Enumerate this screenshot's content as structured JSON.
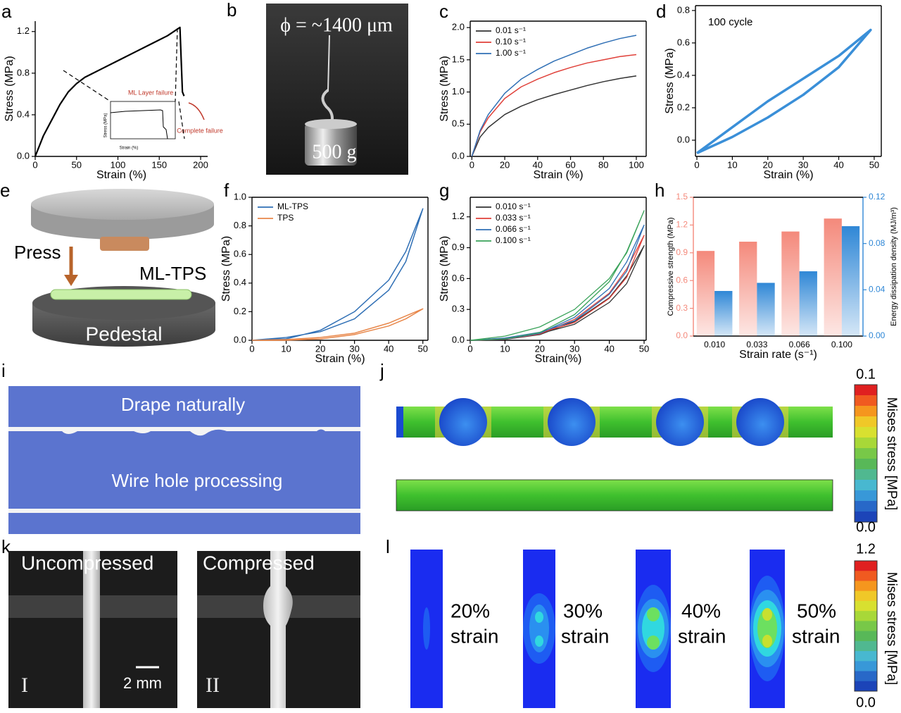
{
  "chart_data": [
    {
      "type": "line",
      "label": "a",
      "xlabel": "Strain (%)",
      "ylabel": "Stress (MPa)",
      "frame": false,
      "x": [
        0,
        10,
        20,
        30,
        40,
        50,
        60,
        80,
        100,
        120,
        140,
        160,
        175,
        178,
        180
      ],
      "series": [
        {
          "color": "#000000",
          "linewidth": 2.2,
          "values": [
            0,
            0.2,
            0.35,
            0.5,
            0.62,
            0.7,
            0.76,
            0.84,
            0.92,
            1.0,
            1.08,
            1.16,
            1.24,
            0.62,
            0.58
          ]
        }
      ],
      "xlim": [
        0,
        208.5
      ],
      "xticks": [
        0,
        50,
        100,
        150,
        200
      ],
      "ylim": [
        0,
        1.3
      ],
      "yticks": [
        {
          "value": 0,
          "label": "0.0"
        },
        0.4,
        0.8,
        1.2
      ],
      "annotations": [
        "ML Layer failure",
        "Complete failure",
        "Stress (MPa)",
        "Strain (%)"
      ]
    },
    {
      "type": "line",
      "label": "c",
      "xlabel": "Strain (%)",
      "ylabel": "Stress (MPa)",
      "frame": true,
      "legend": "upper left",
      "x": [
        0,
        5,
        10,
        20,
        30,
        40,
        50,
        60,
        70,
        80,
        90,
        100
      ],
      "series": [
        {
          "name": "0.01 s⁻¹",
          "color": "#333333",
          "linewidth": 1.5,
          "values": [
            0,
            0.3,
            0.45,
            0.65,
            0.78,
            0.88,
            0.96,
            1.03,
            1.1,
            1.16,
            1.21,
            1.25
          ]
        },
        {
          "name": "0.10 s⁻¹",
          "color": "#e0413a",
          "linewidth": 1.5,
          "values": [
            0,
            0.38,
            0.6,
            0.9,
            1.08,
            1.2,
            1.3,
            1.38,
            1.45,
            1.5,
            1.55,
            1.58
          ]
        },
        {
          "name": "1.00 s⁻¹",
          "color": "#2f6fb5",
          "linewidth": 1.5,
          "values": [
            0,
            0.4,
            0.65,
            0.98,
            1.2,
            1.35,
            1.48,
            1.58,
            1.68,
            1.76,
            1.83,
            1.88
          ]
        }
      ],
      "xlim": [
        -1,
        106
      ],
      "xticks": [
        0,
        20,
        40,
        60,
        80,
        100
      ],
      "ylim": [
        0,
        2.1
      ],
      "yticks": [
        {
          "value": 0,
          "label": "0.0"
        },
        0.5,
        {
          "value": 1,
          "label": "1.0"
        },
        1.5,
        {
          "value": 2,
          "label": "2.0"
        }
      ]
    },
    {
      "type": "line",
      "label": "d",
      "xlabel": "Strain (%)",
      "ylabel": "Stress (MPa)",
      "frame": true,
      "x": [
        0,
        10,
        20,
        30,
        40,
        49,
        40,
        30,
        20,
        10,
        0
      ],
      "series": [
        {
          "color": "#3a8fd8",
          "linewidth": 3.5,
          "values": [
            -0.08,
            0.08,
            0.24,
            0.38,
            0.52,
            0.68,
            0.45,
            0.28,
            0.14,
            0.02,
            -0.08
          ]
        }
      ],
      "xlim": [
        -0.4,
        52
      ],
      "xticks": [
        0,
        10,
        20,
        30,
        40,
        50
      ],
      "ylim": [
        -0.1,
        0.83
      ],
      "yticks": [
        {
          "value": 0,
          "label": "0.0"
        },
        0.2,
        0.4,
        0.6,
        0.8
      ],
      "annotations": [
        "100 cycle"
      ]
    },
    {
      "type": "line",
      "label": "f",
      "xlabel": "Strain (%)",
      "ylabel": "Stress (MPa)",
      "frame": true,
      "legend": "upper left",
      "x": [
        0,
        10,
        20,
        30,
        40,
        45,
        50,
        45,
        40,
        30,
        20,
        10,
        0
      ],
      "series": [
        {
          "name": "ML-TPS",
          "color": "#2f6fb5",
          "linewidth": 1.5,
          "values": [
            0,
            0.02,
            0.06,
            0.15,
            0.35,
            0.55,
            0.92,
            0.62,
            0.42,
            0.2,
            0.07,
            0.01,
            0
          ]
        },
        {
          "name": "TPS",
          "color": "#e8874a",
          "linewidth": 1.5,
          "values": [
            0,
            0.005,
            0.02,
            0.05,
            0.12,
            0.17,
            0.22,
            0.15,
            0.1,
            0.04,
            0.01,
            0,
            0
          ]
        }
      ],
      "xlim": [
        0,
        51.5
      ],
      "xticks": [
        0,
        10,
        20,
        30,
        40,
        50
      ],
      "ylim": [
        0,
        1
      ],
      "yticks": [
        {
          "value": 0,
          "label": "0.0"
        },
        0.2,
        0.4,
        0.6,
        0.8,
        {
          "value": 1,
          "label": "1.0"
        }
      ]
    },
    {
      "type": "line",
      "label": "g",
      "xlabel": "Strain(%)",
      "ylabel": "Stress (MPa)",
      "frame": true,
      "legend": "upper left",
      "x": [
        0,
        10,
        20,
        30,
        40,
        45,
        50,
        45,
        40,
        30,
        20,
        10,
        0
      ],
      "series": [
        {
          "name": "0.010 s⁻¹",
          "color": "#333333",
          "linewidth": 1.3,
          "values": [
            0,
            0.018,
            0.064,
            0.156,
            0.368,
            0.552,
            0.92,
            0.626,
            0.414,
            0.184,
            0.055,
            0.009,
            0
          ]
        },
        {
          "name": "0.033 s⁻¹",
          "color": "#e0413a",
          "linewidth": 1.3,
          "values": [
            0,
            0.02,
            0.071,
            0.173,
            0.408,
            0.612,
            1.02,
            0.694,
            0.459,
            0.204,
            0.061,
            0.01,
            0
          ]
        },
        {
          "name": "0.066 s⁻¹",
          "color": "#2f6fb5",
          "linewidth": 1.3,
          "values": [
            0,
            0.022,
            0.078,
            0.19,
            0.448,
            0.672,
            1.12,
            0.762,
            0.504,
            0.224,
            0.067,
            0.011,
            0
          ]
        },
        {
          "name": "0.100 s⁻¹",
          "color": "#3aa35a",
          "linewidth": 1.3,
          "values": [
            0,
            0.04,
            0.13,
            0.3,
            0.6,
            0.85,
            1.26,
            0.86,
            0.57,
            0.25,
            0.075,
            0.013,
            0
          ]
        }
      ],
      "xlim": [
        0,
        50.6
      ],
      "xticks": [
        0,
        10,
        20,
        30,
        40,
        50
      ],
      "ylim": [
        0,
        1.39
      ],
      "yticks": [
        {
          "value": 0,
          "label": "0.0"
        },
        0.3,
        0.6,
        0.9,
        1.2
      ]
    },
    {
      "type": "bar",
      "label": "h",
      "xlabel": "Strain rate (s⁻¹)",
      "ylabel": "Compressive strength (MPa)",
      "y2label": "Energy dissipation density (MJ/m³)",
      "frame": true,
      "categories": [
        "0.010",
        "0.033",
        "0.066",
        "0.100"
      ],
      "series": [
        {
          "color": "#f4897b",
          "values": [
            0.92,
            1.02,
            1.13,
            1.27
          ]
        },
        {
          "color": "#2f87d6",
          "axis": "y2",
          "values": [
            0.039,
            0.046,
            0.056,
            0.095
          ]
        }
      ],
      "ylim": [
        0,
        1.5
      ],
      "yticks": [
        {
          "value": 0,
          "label": "0.0"
        },
        0.3,
        0.6,
        0.9,
        1.2,
        1.5
      ],
      "y2lim": [
        0,
        0.12
      ],
      "y2ticks": [
        {
          "value": 0,
          "label": "0.00"
        },
        0.04,
        0.08,
        0.12
      ]
    }
  ],
  "panels": {
    "b": {
      "label": "b",
      "texts": [
        "ϕ = ~1400 μm",
        "500 g"
      ]
    },
    "e": {
      "label": "e",
      "texts": [
        "Press",
        "ML-TPS",
        "Pedestal"
      ]
    },
    "i": {
      "label": "i",
      "texts": [
        "Drape naturally",
        "Wire hole processing"
      ]
    },
    "j": {
      "label": "j",
      "colorbar": [
        "0.1",
        "0.0"
      ],
      "colorbar_title": "Mises stress [MPa]"
    },
    "k": {
      "label": "k",
      "texts": [
        "Uncompressed",
        "Compressed",
        "2 mm",
        "I",
        "II"
      ]
    },
    "l": {
      "label": "l",
      "texts": [
        "20%",
        "strain",
        "30%",
        "strain",
        "40%",
        "strain",
        "50%",
        "strain"
      ],
      "colorbar": [
        "1.2",
        "0.0"
      ],
      "colorbar_title": "Mises stress [MPa]"
    }
  }
}
